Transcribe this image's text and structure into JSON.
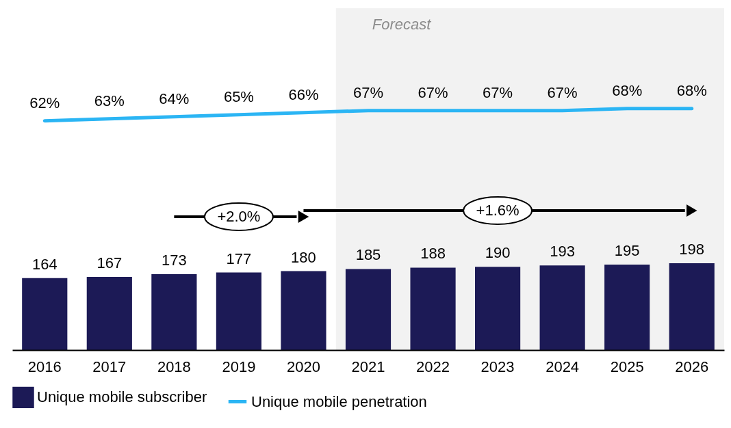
{
  "chart_data": {
    "type": "bar",
    "categories": [
      "2016",
      "2017",
      "2018",
      "2019",
      "2020",
      "2021",
      "2022",
      "2023",
      "2024",
      "2025",
      "2026"
    ],
    "series": [
      {
        "name": "Unique mobile subscriber",
        "color": "#1c1a56",
        "values": [
          164,
          167,
          173,
          177,
          180,
          185,
          188,
          190,
          193,
          195,
          198
        ],
        "value_labels": [
          "164",
          "167",
          "173",
          "177",
          "180",
          "185",
          "188",
          "190",
          "193",
          "195",
          "198"
        ]
      },
      {
        "name": "Unique mobile penetration",
        "type": "line",
        "axis": "y2",
        "color": "#2bb5f4",
        "values": [
          62,
          63,
          64,
          65,
          66,
          67,
          67,
          67,
          67,
          68,
          68
        ],
        "value_labels": [
          "62%",
          "63%",
          "64%",
          "65%",
          "66%",
          "67%",
          "67%",
          "67%",
          "67%",
          "68%",
          "68%"
        ]
      }
    ],
    "ylim": [
      0,
      780
    ],
    "y2lim": [
      -50,
      117
    ],
    "grid": false,
    "legend": "bottom",
    "bands": [
      {
        "axis": "x",
        "from": "2021",
        "to": "2026",
        "label": "Forecast",
        "color": "#f2f2f2"
      }
    ],
    "annotations": [
      "+2.0%",
      "+1.6%"
    ]
  }
}
